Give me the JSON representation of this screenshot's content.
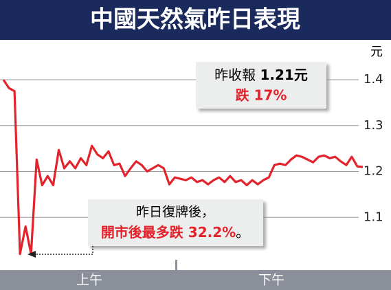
{
  "chart_data": {
    "type": "line",
    "title": "中國天然氣昨日表現",
    "y_unit": "元",
    "x_labels": [
      "上午",
      "下午"
    ],
    "series": [
      {
        "name": null,
        "color": "#e3232b",
        "values": [
          1.4,
          1.382,
          1.375,
          1.02,
          1.08,
          1.02,
          1.226,
          1.17,
          1.19,
          1.17,
          1.247,
          1.207,
          1.222,
          1.207,
          1.229,
          1.214,
          1.256,
          1.237,
          1.229,
          1.244,
          1.214,
          1.217,
          1.19,
          1.207,
          1.222,
          1.214,
          1.2,
          1.207,
          1.214,
          1.207,
          1.172,
          1.187,
          1.184,
          1.181,
          1.187,
          1.177,
          1.181,
          1.172,
          1.181,
          1.187,
          1.177,
          1.19,
          1.177,
          1.181,
          1.17,
          1.181,
          1.172,
          1.181,
          1.187,
          1.214,
          1.217,
          1.214,
          1.226,
          1.235,
          1.232,
          1.226,
          1.22,
          1.232,
          1.235,
          1.229,
          1.232,
          1.222,
          1.214,
          1.232,
          1.211,
          1.21
        ]
      }
    ],
    "ylim": [
      0.985,
      1.487
    ],
    "yticks": [
      1.1,
      1.2,
      1.3,
      1.4
    ],
    "grid": true,
    "annotations": {
      "close_prefix": "昨收報",
      "close_value": "1.21元",
      "close_change": "跌 17%",
      "low_line1": "昨日復牌後，",
      "low_line2": "開市後最多跌 32.2%",
      "low_line2_end": "。"
    }
  }
}
